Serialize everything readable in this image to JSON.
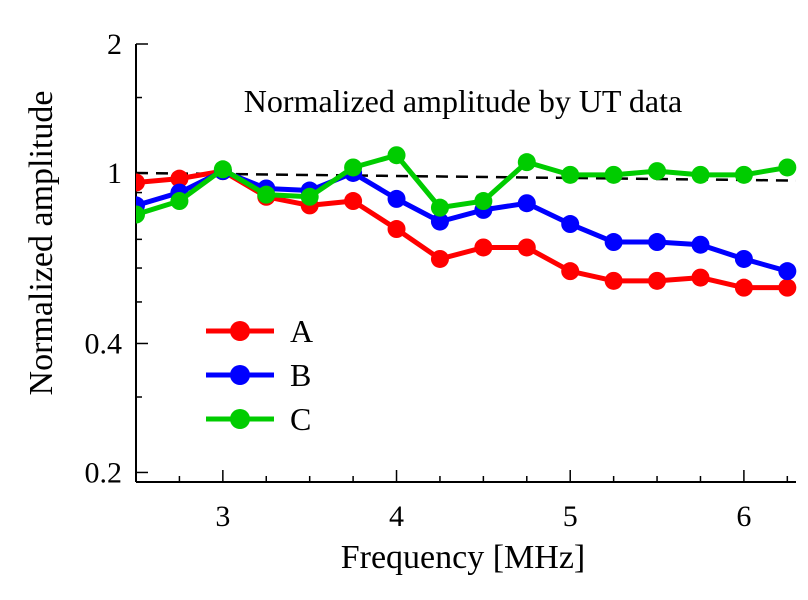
{
  "chart_data": {
    "type": "line",
    "title": "Normalized amplitude by UT data",
    "xlabel": "Frequency [MHz]",
    "ylabel": "Normalized amplitude",
    "y_scale": "log",
    "xlim": [
      2.5,
      6.3
    ],
    "ylim": [
      0.19,
      2.0
    ],
    "x_ticks": [
      "3",
      "4",
      "5",
      "6"
    ],
    "y_ticks": [
      "0.2",
      "0.4",
      "1",
      "2"
    ],
    "legend_position": "bottom-left",
    "reference_line": {
      "style": "dashed",
      "color": "#000000",
      "from": [
        2.5,
        1.0
      ],
      "to": [
        6.3,
        0.96
      ]
    },
    "x": [
      2.5,
      2.75,
      3.0,
      3.25,
      3.5,
      3.75,
      4.0,
      4.25,
      4.5,
      4.75,
      5.0,
      5.25,
      5.5,
      5.75,
      6.0,
      6.25
    ],
    "series": [
      {
        "name": "A",
        "color": "#ff0000",
        "values": [
          0.95,
          0.97,
          1.01,
          0.88,
          0.84,
          0.86,
          0.74,
          0.63,
          0.67,
          0.67,
          0.59,
          0.56,
          0.56,
          0.57,
          0.54,
          0.54
        ]
      },
      {
        "name": "B",
        "color": "#0000ff",
        "values": [
          0.84,
          0.9,
          1.01,
          0.92,
          0.91,
          1.0,
          0.87,
          0.77,
          0.82,
          0.85,
          0.76,
          0.69,
          0.69,
          0.68,
          0.63,
          0.59
        ]
      },
      {
        "name": "C",
        "color": "#00cc00",
        "values": [
          0.8,
          0.86,
          1.02,
          0.89,
          0.88,
          1.03,
          1.1,
          0.83,
          0.86,
          1.06,
          0.99,
          0.99,
          1.01,
          0.99,
          0.99,
          1.03
        ]
      }
    ]
  }
}
